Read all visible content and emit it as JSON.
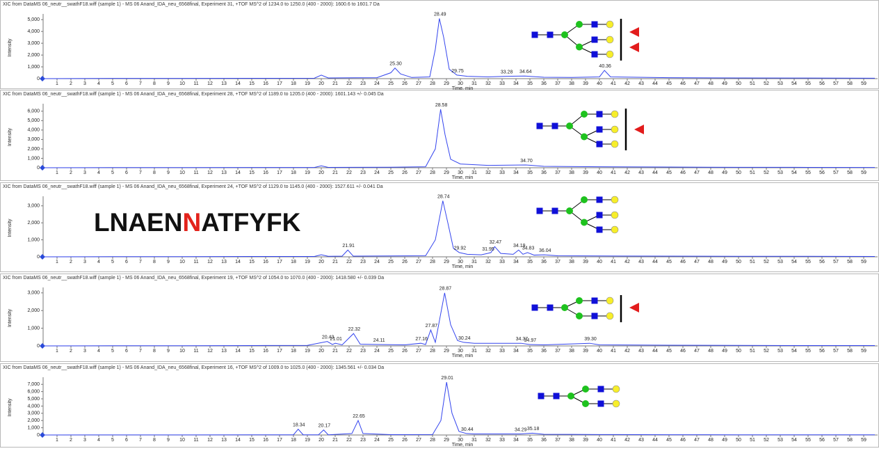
{
  "chart_data": [
    {
      "type": "line",
      "title": "XIC from DataMS 06_neutr__swathF18.wiff (sample 1) - MS 06 Anand_IDA_neu_6568final, Experiment 31, +TOF MS^2 of 1234.0 to 1250.0 (400 - 2000): 1600.6 to 1601.7 Da",
      "x_label": "Time, min",
      "y_label": "Intensity",
      "color": "#3344ee",
      "xlim": [
        0,
        60
      ],
      "ylim": [
        0,
        5250
      ],
      "xticks": [
        1,
        2,
        3,
        4,
        5,
        6,
        7,
        8,
        9,
        10,
        11,
        12,
        13,
        14,
        15,
        16,
        17,
        18,
        19,
        20,
        21,
        22,
        23,
        24,
        25,
        26,
        27,
        28,
        29,
        30,
        31,
        32,
        33,
        34,
        35,
        36,
        37,
        38,
        39,
        40,
        41,
        42,
        43,
        44,
        45,
        46,
        47,
        48,
        49,
        50,
        51,
        52,
        53,
        54,
        55,
        56,
        57,
        58,
        59
      ],
      "yticks": [
        0,
        {
          "value": 1000,
          "label": "1,000"
        },
        {
          "value": 2000,
          "label": "2,000"
        },
        {
          "value": 3000,
          "label": "3,000"
        },
        {
          "value": 4000,
          "label": "4,000"
        },
        {
          "value": 5000,
          "label": "5,000"
        }
      ],
      "x": [
        0,
        5,
        10,
        15,
        19.5,
        20,
        20.5,
        24,
        25,
        25.3,
        25.7,
        26.5,
        27.8,
        28.2,
        28.49,
        28.8,
        29.2,
        29.75,
        30.5,
        32,
        33.28,
        34.64,
        36,
        38,
        40,
        40.36,
        40.8,
        45,
        50,
        55,
        59.8
      ],
      "values": [
        0,
        20,
        20,
        30,
        40,
        300,
        60,
        80,
        500,
        900,
        400,
        100,
        150,
        2500,
        5100,
        3500,
        800,
        300,
        200,
        150,
        200,
        220,
        120,
        100,
        150,
        700,
        150,
        80,
        60,
        50,
        40
      ],
      "peak_labels": [
        {
          "value": 25.3,
          "label": "25.30"
        },
        {
          "value": 28.49,
          "label": "28.49"
        },
        {
          "value": 29.75,
          "label": "29.75"
        },
        {
          "value": 33.28,
          "label": "33.28"
        },
        {
          "value": 34.64,
          "label": "34.64"
        },
        {
          "value": 40.36,
          "label": "40.36"
        }
      ]
    },
    {
      "type": "line",
      "title": "XIC from DataMS 06_neutr__swathF18.wiff (sample 1) - MS 06 Anand_IDA_neu_6568final, Experiment 28, +TOF MS^2 of 1189.0 to 1205.0 (400 - 2000): 1601.143 +/- 0.045 Da",
      "x_label": "Time, min",
      "y_label": "Intensity",
      "color": "#3344ee",
      "xlim": [
        0,
        60
      ],
      "ylim": [
        0,
        6500
      ],
      "xticks": [
        1,
        2,
        3,
        4,
        5,
        6,
        7,
        8,
        9,
        10,
        11,
        12,
        13,
        14,
        15,
        16,
        17,
        18,
        19,
        20,
        21,
        22,
        23,
        24,
        25,
        26,
        27,
        28,
        29,
        30,
        31,
        32,
        33,
        34,
        35,
        36,
        37,
        38,
        39,
        40,
        41,
        42,
        43,
        44,
        45,
        46,
        47,
        48,
        49,
        50,
        51,
        52,
        53,
        54,
        55,
        56,
        57,
        58,
        59
      ],
      "yticks": [
        0,
        {
          "value": 1000,
          "label": "1,000"
        },
        {
          "value": 2000,
          "label": "2,000"
        },
        {
          "value": 3000,
          "label": "3,000"
        },
        {
          "value": 4000,
          "label": "4,000"
        },
        {
          "value": 5000,
          "label": "5,000"
        },
        {
          "value": 6000,
          "label": "6,000"
        }
      ],
      "x": [
        0,
        5,
        10,
        15,
        19.5,
        20,
        20.5,
        25,
        27.5,
        28.2,
        28.58,
        28.9,
        29.3,
        30,
        32,
        34.7,
        36,
        40,
        45,
        50,
        55,
        59.8
      ],
      "values": [
        0,
        20,
        20,
        30,
        30,
        200,
        40,
        60,
        100,
        2000,
        6200,
        3500,
        900,
        400,
        250,
        300,
        150,
        100,
        70,
        50,
        40,
        30
      ],
      "peak_labels": [
        {
          "value": 28.58,
          "label": "28.58"
        },
        {
          "value": 34.7,
          "label": "34.70"
        }
      ]
    },
    {
      "type": "line",
      "title": "XIC from DataMS 06_neutr__swathF18.wiff (sample 1) - MS 06 Anand_IDA_neu_6568final, Experiment 24, +TOF MS^2 of 1129.0 to 1145.0 (400 - 2000): 1527.611 +/- 0.041 Da",
      "x_label": "Time, min",
      "y_label": "Intensity",
      "color": "#3344ee",
      "xlim": [
        0,
        60
      ],
      "ylim": [
        0,
        3400
      ],
      "xticks": [
        1,
        2,
        3,
        4,
        5,
        6,
        7,
        8,
        9,
        10,
        11,
        12,
        13,
        14,
        15,
        16,
        17,
        18,
        19,
        20,
        21,
        22,
        23,
        24,
        25,
        26,
        27,
        28,
        29,
        30,
        31,
        32,
        33,
        34,
        35,
        36,
        37,
        38,
        39,
        40,
        41,
        42,
        43,
        44,
        45,
        46,
        47,
        48,
        49,
        50,
        51,
        52,
        53,
        54,
        55,
        56,
        57,
        58,
        59
      ],
      "yticks": [
        0,
        {
          "value": 1000,
          "label": "1,000"
        },
        {
          "value": 2000,
          "label": "2,000"
        },
        {
          "value": 3000,
          "label": "3,000"
        }
      ],
      "x": [
        0,
        5,
        10,
        15,
        19.5,
        20,
        20.5,
        21.5,
        21.91,
        22.3,
        25,
        27.5,
        28.2,
        28.74,
        29.1,
        29.5,
        29.92,
        30.5,
        31.5,
        31.95,
        32.2,
        32.47,
        32.9,
        33.8,
        34.19,
        34.5,
        34.83,
        35.3,
        36.04,
        37,
        40,
        45,
        50,
        55,
        59.8
      ],
      "values": [
        0,
        10,
        10,
        20,
        20,
        120,
        30,
        40,
        400,
        40,
        50,
        60,
        1000,
        3300,
        2000,
        500,
        250,
        150,
        120,
        200,
        250,
        600,
        200,
        150,
        400,
        150,
        250,
        100,
        120,
        60,
        50,
        40,
        30,
        30,
        20
      ],
      "peak_labels": [
        {
          "value": 21.91,
          "label": "21.91"
        },
        {
          "value": 28.74,
          "label": "28.74"
        },
        {
          "value": 29.92,
          "label": "29.92"
        },
        {
          "value": 31.95,
          "label": "31.95"
        },
        {
          "value": 32.47,
          "label": "32.47"
        },
        {
          "value": 34.19,
          "label": "34.19"
        },
        {
          "value": 34.83,
          "label": "34.83"
        },
        {
          "value": 36.04,
          "label": "36.04"
        }
      ],
      "annotation_parts": [
        "LNAEN",
        "N",
        "ATFYFK"
      ],
      "annotation_colors": [
        "#111111",
        "#e3231c",
        "#111111"
      ]
    },
    {
      "type": "line",
      "title": "XIC from DataMS 06_neutr__swathF18.wiff (sample 1) - MS 06 Anand_IDA_neu_6568final, Experiment 19, +TOF MS^2 of 1054.0 to 1070.0 (400 - 2000): 1418.580 +/- 0.039 Da",
      "x_label": "Time, min",
      "y_label": "Intensity",
      "color": "#3344ee",
      "xlim": [
        0,
        60
      ],
      "ylim": [
        0,
        3150
      ],
      "xticks": [
        1,
        2,
        3,
        4,
        5,
        6,
        7,
        8,
        9,
        10,
        11,
        12,
        13,
        14,
        15,
        16,
        17,
        18,
        19,
        20,
        21,
        22,
        23,
        24,
        25,
        26,
        27,
        28,
        29,
        30,
        31,
        32,
        33,
        34,
        35,
        36,
        37,
        38,
        39,
        40,
        41,
        42,
        43,
        44,
        45,
        46,
        47,
        48,
        49,
        50,
        51,
        52,
        53,
        54,
        55,
        56,
        57,
        58,
        59
      ],
      "yticks": [
        0,
        {
          "value": 1000,
          "label": "1,000"
        },
        {
          "value": 2000,
          "label": "2,000"
        },
        {
          "value": 3000,
          "label": "3,000"
        }
      ],
      "x": [
        0,
        5,
        10,
        15,
        19,
        20.43,
        20.8,
        21.01,
        21.5,
        22.32,
        22.8,
        24.11,
        26,
        27.16,
        27.5,
        27.87,
        28.2,
        28.87,
        29.3,
        29.8,
        30.24,
        31,
        34.37,
        34.97,
        36,
        39.3,
        40,
        45,
        50,
        55,
        59.8
      ],
      "values": [
        0,
        10,
        10,
        20,
        30,
        250,
        80,
        150,
        60,
        700,
        100,
        80,
        60,
        150,
        80,
        900,
        200,
        3000,
        1200,
        300,
        200,
        150,
        150,
        80,
        60,
        150,
        60,
        40,
        30,
        20,
        20
      ],
      "peak_labels": [
        {
          "value": 20.43,
          "label": "20.43"
        },
        {
          "value": 21.01,
          "label": "21.01"
        },
        {
          "value": 22.32,
          "label": "22.32"
        },
        {
          "value": 24.11,
          "label": "24.11"
        },
        {
          "value": 27.16,
          "label": "27.16"
        },
        {
          "value": 27.87,
          "label": "27.87"
        },
        {
          "value": 28.87,
          "label": "28.87"
        },
        {
          "value": 30.24,
          "label": "30.24"
        },
        {
          "value": 34.37,
          "label": "34.37"
        },
        {
          "value": 34.97,
          "label": "34.97"
        },
        {
          "value": 39.3,
          "label": "39.30"
        }
      ]
    },
    {
      "type": "line",
      "title": "XIC from DataMS 06_neutr__swathF18.wiff (sample 1) - MS 06 Anand_IDA_neu_6568final, Experiment 16, +TOF MS^2 of 1009.0 to 1025.0 (400 - 2000): 1345.561 +/- 0.034 Da",
      "x_label": "Time, min",
      "y_label": "Intensity",
      "color": "#3344ee",
      "xlim": [
        0,
        60
      ],
      "ylim": [
        0,
        7600
      ],
      "xticks": [
        1,
        2,
        3,
        4,
        5,
        6,
        7,
        8,
        9,
        10,
        11,
        12,
        13,
        14,
        15,
        16,
        17,
        18,
        19,
        20,
        21,
        22,
        23,
        24,
        25,
        26,
        27,
        28,
        29,
        30,
        31,
        32,
        33,
        34,
        35,
        36,
        37,
        38,
        39,
        40,
        41,
        42,
        43,
        44,
        45,
        46,
        47,
        48,
        49,
        50,
        51,
        52,
        53,
        54,
        55,
        56,
        57,
        58,
        59
      ],
      "yticks": [
        0,
        {
          "value": 1000,
          "label": "1,000"
        },
        {
          "value": 2000,
          "label": "2,000"
        },
        {
          "value": 3000,
          "label": "3,000"
        },
        {
          "value": 4000,
          "label": "4,000"
        },
        {
          "value": 5000,
          "label": "5,000"
        },
        {
          "value": 6000,
          "label": "6,000"
        },
        {
          "value": 7000,
          "label": "7,000"
        }
      ],
      "x": [
        0,
        5,
        10,
        15,
        18,
        18.34,
        18.7,
        19.8,
        20.17,
        20.5,
        22.2,
        22.65,
        23,
        25,
        28,
        28.6,
        29.01,
        29.4,
        29.9,
        30.44,
        31,
        34.29,
        35.18,
        36,
        38,
        40,
        45,
        50,
        55,
        59.8
      ],
      "values": [
        0,
        10,
        10,
        20,
        30,
        800,
        30,
        30,
        700,
        30,
        200,
        2000,
        200,
        50,
        60,
        2000,
        7300,
        3000,
        500,
        200,
        150,
        150,
        250,
        100,
        80,
        60,
        40,
        30,
        20,
        20
      ],
      "peak_labels": [
        {
          "value": 18.34,
          "label": "18.34"
        },
        {
          "value": 20.17,
          "label": "20.17"
        },
        {
          "value": 22.65,
          "label": "22.65"
        },
        {
          "value": 29.01,
          "label": "29.01"
        },
        {
          "value": 30.44,
          "label": "30.44"
        },
        {
          "value": 34.29,
          "label": "34.29"
        },
        {
          "value": 35.18,
          "label": "35.18"
        }
      ]
    }
  ]
}
